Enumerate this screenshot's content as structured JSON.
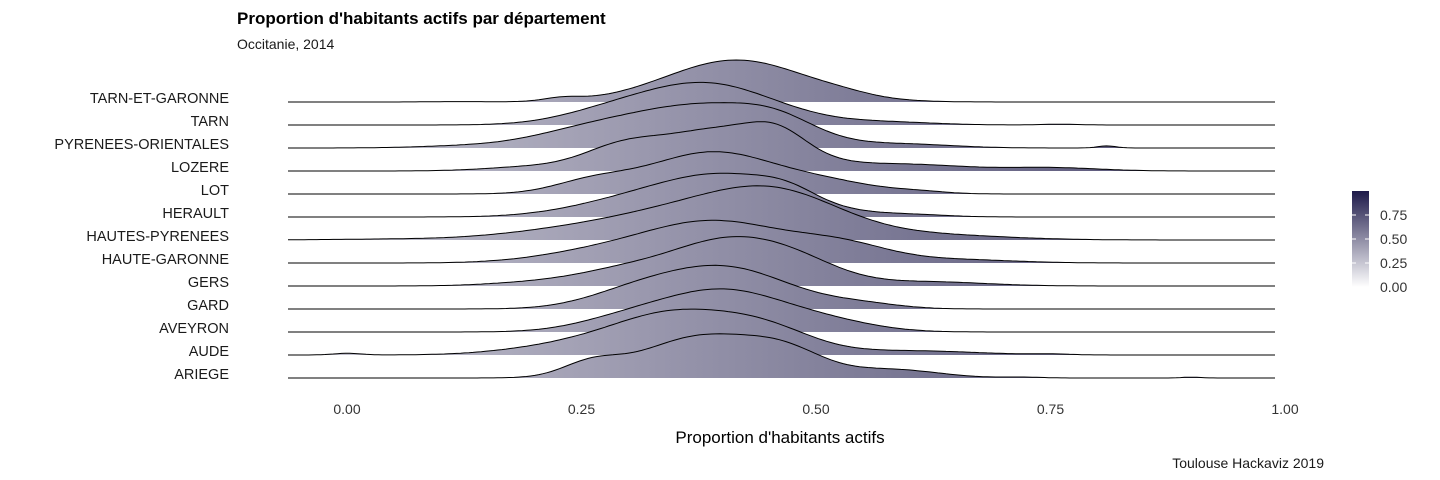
{
  "chart_data": {
    "type": "ridgeline",
    "title": "Proportion d'habitants actifs par département",
    "subtitle": "Occitanie, 2014",
    "caption": "Toulouse Hackaviz 2019",
    "xlabel": "Proportion d'habitants actifs",
    "xlim": [
      -0.065,
      1.0
    ],
    "xticks": [
      0.0,
      0.25,
      0.5,
      0.75,
      1.0
    ],
    "xtick_labels": [
      "0.00",
      "0.25",
      "0.50",
      "0.75",
      "1.00"
    ],
    "categories": [
      "TARN-ET-GARONNE",
      "TARN",
      "PYRENEES-ORIENTALES",
      "LOZERE",
      "LOT",
      "HERAULT",
      "HAUTES-PYRENEES",
      "HAUTE-GARONNE",
      "GERS",
      "GARD",
      "AVEYRON",
      "AUDE",
      "ARIEGE"
    ],
    "densities": [
      {
        "name": "TARN-ET-GARONNE",
        "peaks": [
          [
            0.415,
            0.075,
            1.0
          ],
          [
            0.23,
            0.02,
            0.08
          ],
          [
            0.53,
            0.03,
            0.05
          ],
          [
            0.12,
            0.03,
            0.01
          ]
        ]
      },
      {
        "name": "TARN",
        "peaks": [
          [
            0.38,
            0.075,
            1.0
          ],
          [
            0.27,
            0.05,
            0.15
          ],
          [
            0.58,
            0.05,
            0.06
          ],
          [
            0.76,
            0.02,
            0.02
          ]
        ]
      },
      {
        "name": "PYRENEES-ORIENTALES",
        "peaks": [
          [
            0.38,
            0.08,
            1.0
          ],
          [
            0.46,
            0.04,
            0.3
          ],
          [
            0.25,
            0.06,
            0.3
          ],
          [
            0.6,
            0.05,
            0.08
          ],
          [
            0.12,
            0.05,
            0.04
          ],
          [
            0.81,
            0.01,
            0.05
          ]
        ]
      },
      {
        "name": "LOZERE",
        "peaks": [
          [
            0.4,
            0.07,
            1.0
          ],
          [
            0.46,
            0.03,
            0.4
          ],
          [
            0.29,
            0.04,
            0.4
          ],
          [
            0.2,
            0.05,
            0.1
          ],
          [
            0.6,
            0.06,
            0.15
          ],
          [
            0.75,
            0.05,
            0.08
          ]
        ]
      },
      {
        "name": "LOT",
        "peaks": [
          [
            0.39,
            0.07,
            1.0
          ],
          [
            0.26,
            0.04,
            0.25
          ],
          [
            0.52,
            0.05,
            0.2
          ],
          [
            0.61,
            0.03,
            0.05
          ]
        ]
      },
      {
        "name": "HERAULT",
        "peaks": [
          [
            0.4,
            0.075,
            1.0
          ],
          [
            0.47,
            0.03,
            0.2
          ],
          [
            0.28,
            0.06,
            0.2
          ],
          [
            0.6,
            0.04,
            0.05
          ]
        ]
      },
      {
        "name": "HAUTES-PYRENEES",
        "peaks": [
          [
            0.46,
            0.07,
            1.0
          ],
          [
            0.35,
            0.08,
            0.6
          ],
          [
            0.22,
            0.07,
            0.15
          ],
          [
            0.62,
            0.08,
            0.12
          ],
          [
            0.05,
            0.07,
            0.02
          ]
        ]
      },
      {
        "name": "HAUTE-GARONNE",
        "peaks": [
          [
            0.39,
            0.08,
            1.0
          ],
          [
            0.53,
            0.05,
            0.35
          ],
          [
            0.25,
            0.06,
            0.15
          ],
          [
            0.65,
            0.06,
            0.08
          ]
        ]
      },
      {
        "name": "GERS",
        "peaks": [
          [
            0.4,
            0.06,
            1.0
          ],
          [
            0.48,
            0.05,
            0.45
          ],
          [
            0.29,
            0.05,
            0.3
          ],
          [
            0.2,
            0.05,
            0.08
          ],
          [
            0.62,
            0.06,
            0.1
          ]
        ]
      },
      {
        "name": "GARD",
        "peaks": [
          [
            0.4,
            0.07,
            1.0
          ],
          [
            0.3,
            0.05,
            0.25
          ],
          [
            0.55,
            0.04,
            0.1
          ]
        ]
      },
      {
        "name": "AVEYRON",
        "peaks": [
          [
            0.4,
            0.07,
            1.0
          ],
          [
            0.29,
            0.05,
            0.2
          ],
          [
            0.52,
            0.05,
            0.15
          ]
        ]
      },
      {
        "name": "AUDE",
        "peaks": [
          [
            0.35,
            0.07,
            1.0
          ],
          [
            0.45,
            0.05,
            0.45
          ],
          [
            0.22,
            0.06,
            0.15
          ],
          [
            0.6,
            0.07,
            0.1
          ],
          [
            0.0,
            0.015,
            0.04
          ],
          [
            0.75,
            0.02,
            0.02
          ]
        ]
      },
      {
        "name": "ARIEGE",
        "peaks": [
          [
            0.38,
            0.065,
            1.0
          ],
          [
            0.26,
            0.03,
            0.3
          ],
          [
            0.47,
            0.04,
            0.45
          ],
          [
            0.58,
            0.05,
            0.2
          ],
          [
            0.72,
            0.02,
            0.02
          ],
          [
            0.9,
            0.01,
            0.02
          ]
        ]
      }
    ],
    "fill_scale": {
      "type": "continuous",
      "ticks": [
        0.0,
        0.25,
        0.5,
        0.75
      ],
      "tick_labels": [
        "0.00",
        "0.25",
        "0.50",
        "0.75"
      ],
      "low_color": "#ffffff",
      "high_color": "#1e1a4a",
      "fill_range": [
        0.25,
        0.8
      ]
    },
    "grid": false,
    "legend_position": "right"
  }
}
